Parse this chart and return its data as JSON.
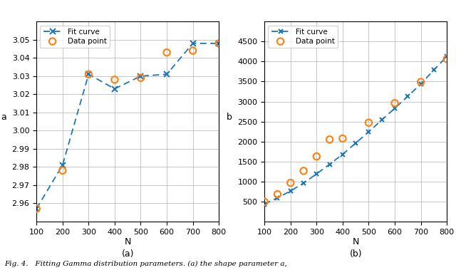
{
  "alpha_fit_N": [
    100,
    200,
    300,
    400,
    500,
    600,
    700,
    800
  ],
  "alpha_fit_vals": [
    2.957,
    2.981,
    3.031,
    3.023,
    3.03,
    3.031,
    3.048,
    3.048
  ],
  "alpha_data_N": [
    100,
    200,
    300,
    400,
    500,
    600,
    700,
    800
  ],
  "alpha_data_vals": [
    2.957,
    2.978,
    3.031,
    3.028,
    3.029,
    3.043,
    3.044,
    3.048
  ],
  "beta_fit_N": [
    100,
    150,
    200,
    250,
    300,
    350,
    400,
    450,
    500,
    550,
    600,
    650,
    700,
    750,
    800
  ],
  "beta_fit_vals": [
    430,
    590,
    760,
    960,
    1190,
    1430,
    1680,
    1960,
    2240,
    2540,
    2830,
    3130,
    3440,
    3790,
    4130
  ],
  "beta_data_N": [
    100,
    150,
    200,
    250,
    300,
    350,
    400,
    500,
    600,
    700,
    800
  ],
  "beta_data_vals": [
    490,
    680,
    965,
    1265,
    1625,
    2050,
    2075,
    2470,
    2960,
    3490,
    4065
  ],
  "line_color": "#1f77b4",
  "data_color": "#ff7f0e",
  "background_color": "#ffffff",
  "grid_color": "#b0b0b0",
  "ylabel_a": "a",
  "ylabel_b": "b",
  "xlabel": "N",
  "legend_fit": "Fit curve",
  "legend_data": "Data point",
  "subplot_a_label": "(a)",
  "subplot_b_label": "(b)",
  "xlim_a": [
    100,
    800
  ],
  "ylim_a": [
    2.95,
    3.06
  ],
  "xlim_b": [
    100,
    800
  ],
  "ylim_b": [
    0,
    5000
  ],
  "xticks": [
    100,
    200,
    300,
    400,
    500,
    600,
    700,
    800
  ],
  "yticks_a": [
    2.96,
    2.97,
    2.98,
    2.99,
    3.0,
    3.01,
    3.02,
    3.03,
    3.04,
    3.05
  ],
  "yticks_b": [
    500,
    1000,
    1500,
    2000,
    2500,
    3000,
    3500,
    4000,
    4500
  ],
  "caption": "Fig. 4.   Fitting Gamma distribution parameters. (a) the shape parameter a,"
}
